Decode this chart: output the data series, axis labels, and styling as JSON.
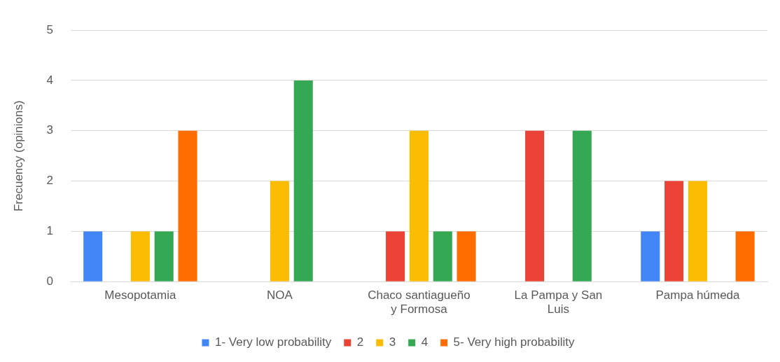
{
  "chart_data": {
    "type": "bar",
    "ylabel": "Frecuency (opinions)",
    "categories": [
      "Mesopotamia",
      "NOA",
      "Chaco santiagueño y Formosa",
      "La Pampa y San Luis",
      "Pampa húmeda"
    ],
    "series": [
      {
        "name": "1- Very low probability",
        "color": "#4285f4",
        "values": [
          1,
          0,
          0,
          0,
          1
        ]
      },
      {
        "name": "2",
        "color": "#ea4335",
        "values": [
          0,
          0,
          1,
          3,
          2
        ]
      },
      {
        "name": "3",
        "color": "#fbbc04",
        "values": [
          1,
          2,
          3,
          0,
          2
        ]
      },
      {
        "name": "4",
        "color": "#34a853",
        "values": [
          1,
          4,
          1,
          3,
          0
        ]
      },
      {
        "name": "5- Very high probability",
        "color": "#ff6d01",
        "values": [
          3,
          0,
          1,
          0,
          1
        ]
      }
    ],
    "ylim": [
      0,
      5
    ],
    "yticks": [
      0,
      1,
      2,
      3,
      4,
      5
    ],
    "grid": "y",
    "legend": "bottom"
  }
}
